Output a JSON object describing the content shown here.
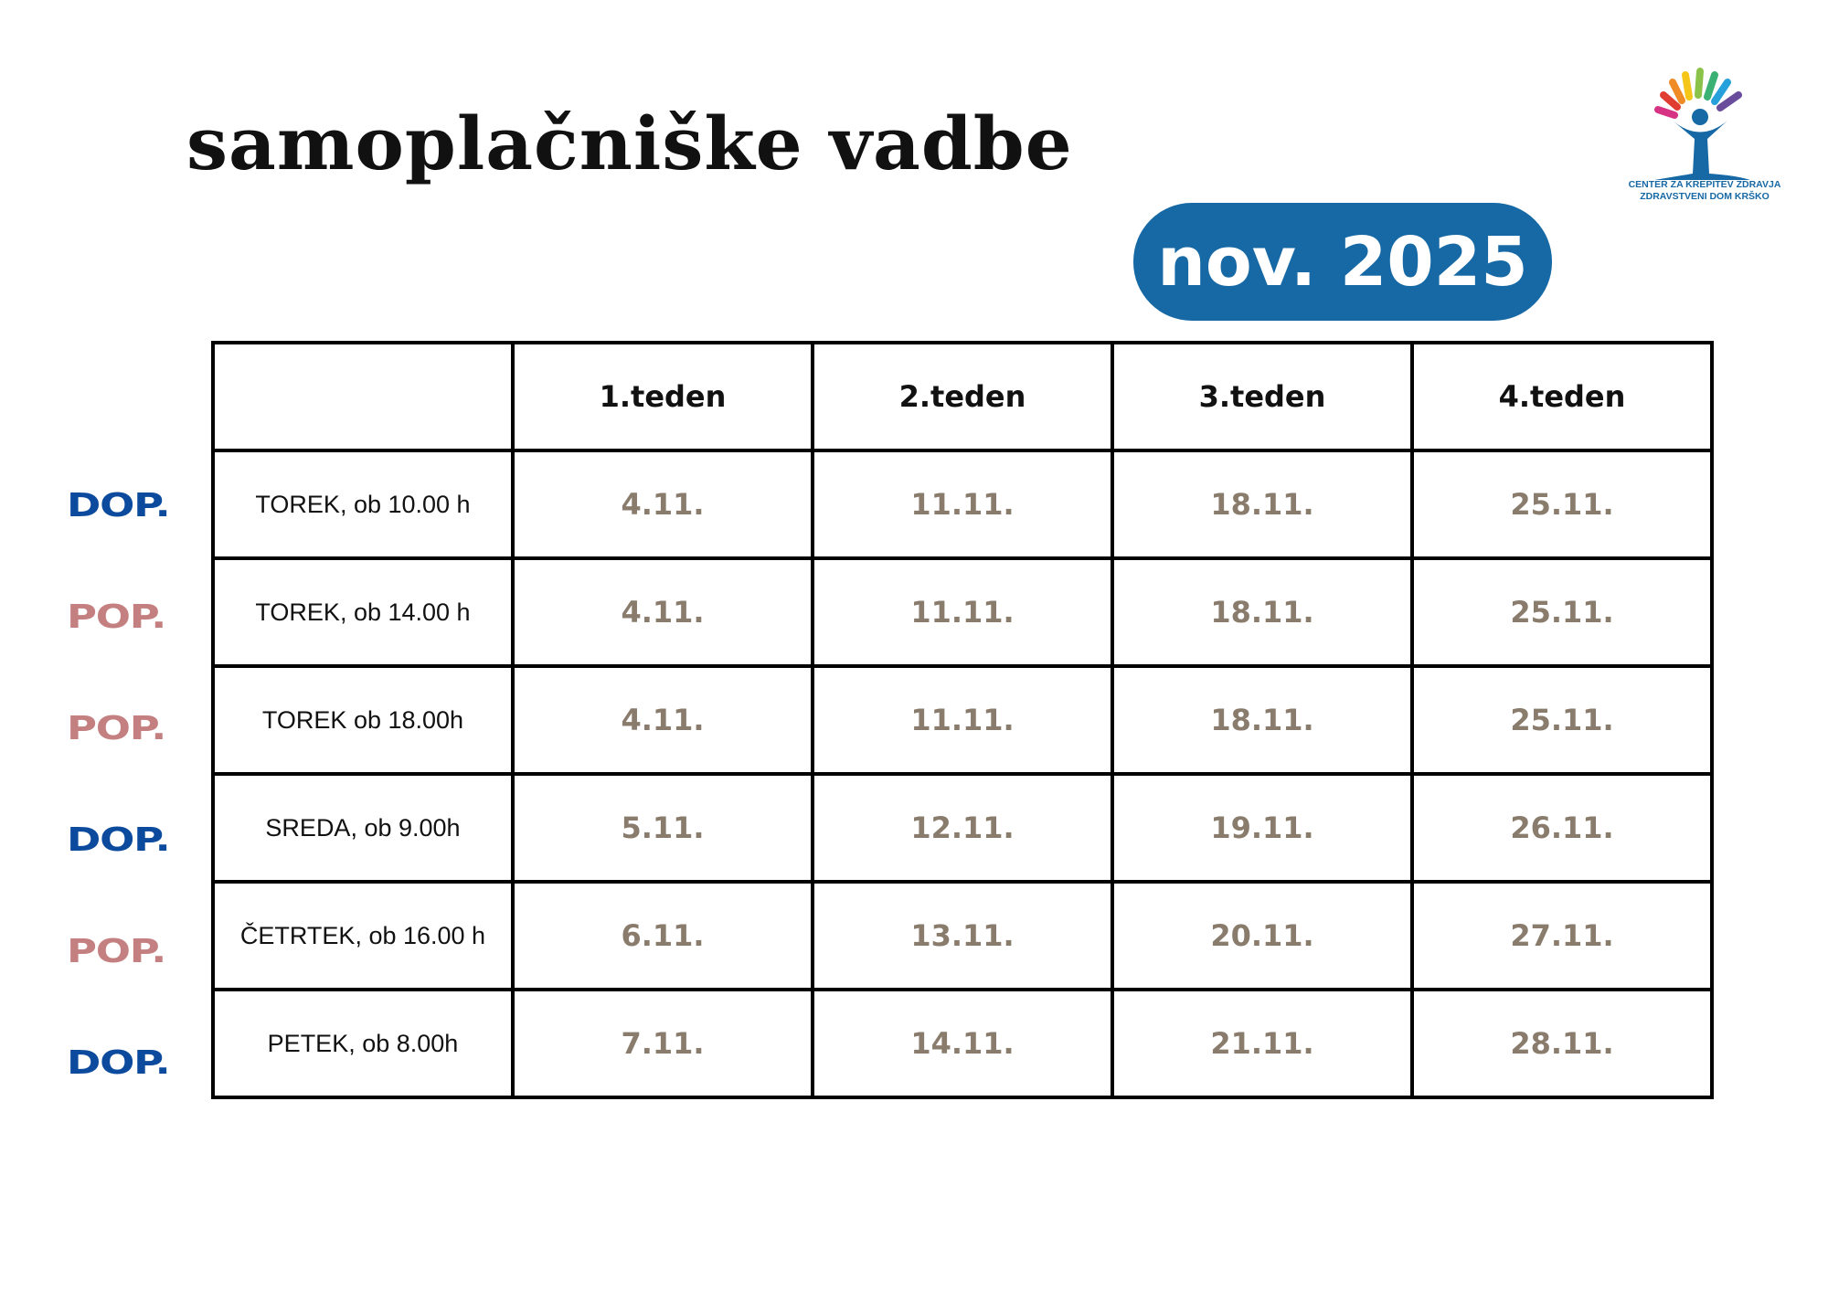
{
  "header": {
    "title": "samoplačniške vadbe",
    "month": "nov. 2025"
  },
  "logo": {
    "lines": [
      "CENTER ZA KREPITEV ZDRAVJA",
      "ZDRAVSTVENI DOM KRŠKO"
    ]
  },
  "table": {
    "columns": [
      "1.teden",
      "2.teden",
      "3.teden",
      "4.teden"
    ],
    "rows": [
      {
        "tag": "DOP.",
        "day": "TOREK, ob 10.00 h",
        "dates": [
          "4.11.",
          "11.11.",
          "18.11.",
          "25.11."
        ]
      },
      {
        "tag": "POP.",
        "day": "TOREK, ob 14.00 h",
        "dates": [
          "4.11.",
          "11.11.",
          "18.11.",
          "25.11."
        ]
      },
      {
        "tag": "POP.",
        "day": "TOREK ob 18.00h",
        "dates": [
          "4.11.",
          "11.11.",
          "18.11.",
          "25.11."
        ]
      },
      {
        "tag": "DOP.",
        "day": "SREDA, ob 9.00h",
        "dates": [
          "5.11.",
          "12.11.",
          "19.11.",
          "26.11."
        ]
      },
      {
        "tag": "POP.",
        "day": "ČETRTEK, ob 16.00 h",
        "dates": [
          "6.11.",
          "13.11.",
          "20.11.",
          "27.11."
        ]
      },
      {
        "tag": "DOP.",
        "day": "PETEK, ob 8.00h",
        "dates": [
          "7.11.",
          "14.11.",
          "21.11.",
          "28.11."
        ]
      }
    ]
  }
}
